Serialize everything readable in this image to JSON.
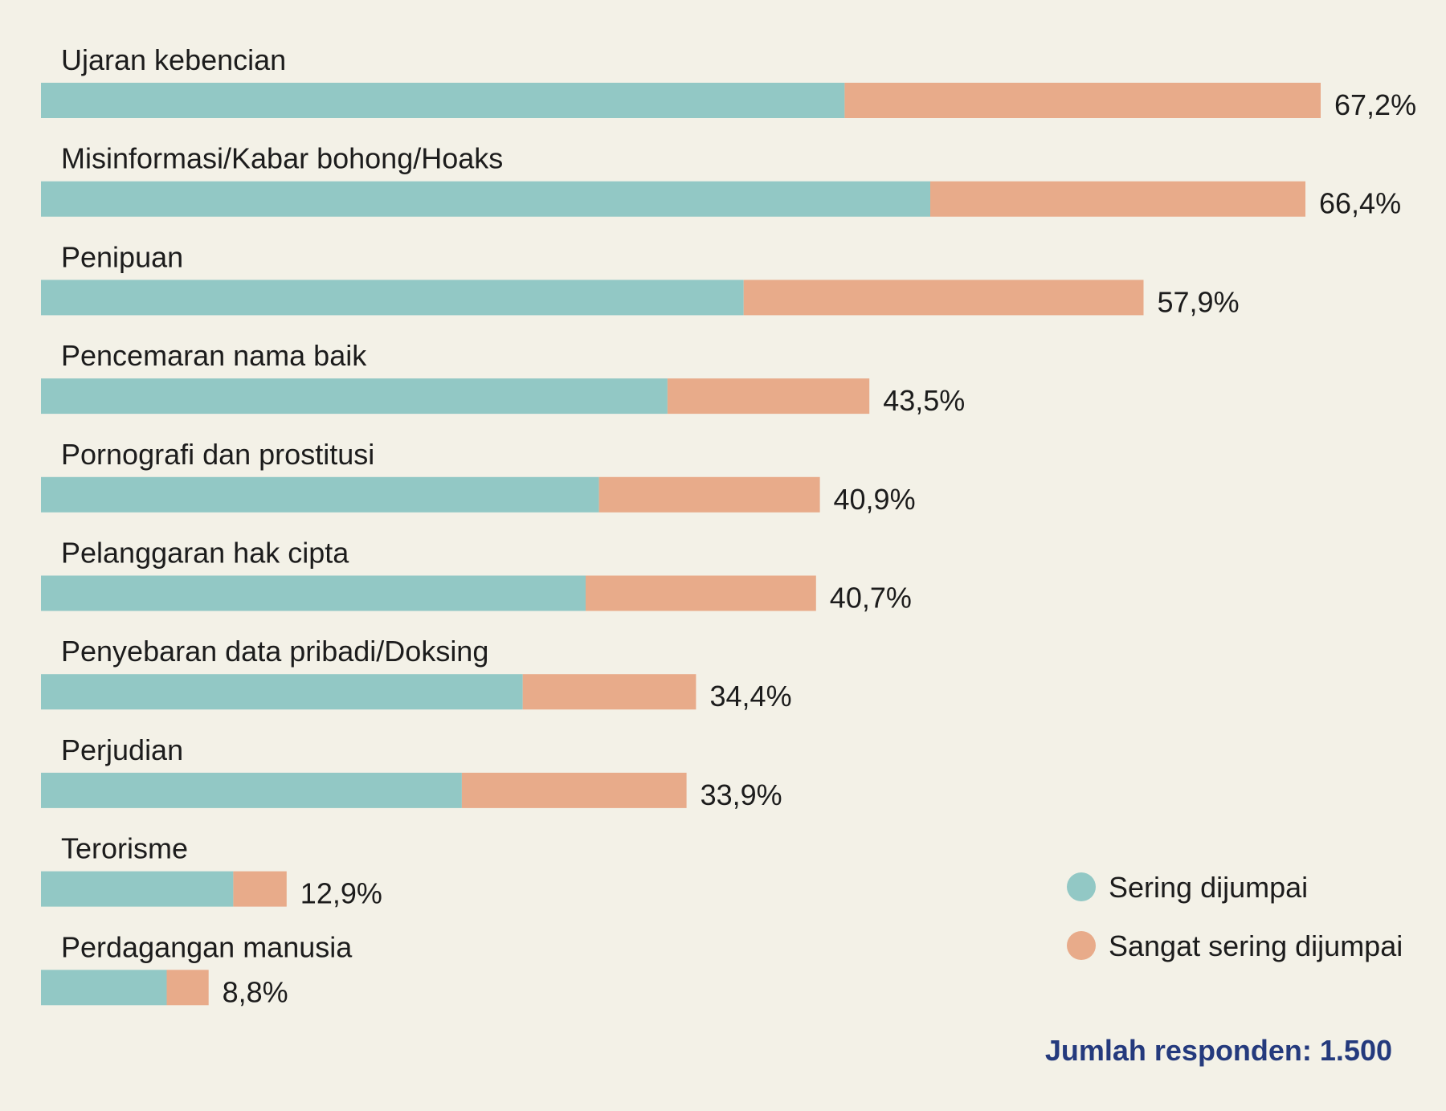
{
  "chart_data": {
    "type": "bar",
    "orientation": "horizontal",
    "stacked": true,
    "categories": [
      "Ujaran kebencian",
      "Misinformasi/Kabar bohong/Hoaks",
      "Penipuan",
      "Pencemaran nama baik",
      "Pornografi dan prostitusi",
      "Pelanggaran hak cipta",
      "Penyebaran data pribadi/Doksing",
      "Perjudian",
      "Terorisme",
      "Perdagangan manusia"
    ],
    "series": [
      {
        "name": "Sering dijumpai",
        "color": "#92c8c5",
        "values": [
          42.2,
          46.7,
          36.9,
          32.9,
          29.3,
          28.6,
          25.3,
          22.1,
          10.1,
          6.6
        ]
      },
      {
        "name": "Sangat sering dijumpai",
        "color": "#e8ab8a",
        "values": [
          25.0,
          19.7,
          21.0,
          10.6,
          11.6,
          12.1,
          9.1,
          11.8,
          2.8,
          2.2
        ]
      }
    ],
    "total_labels": [
      "67,2%",
      "66,4%",
      "57,9%",
      "43,5%",
      "40,9%",
      "40,7%",
      "34,4%",
      "33,9%",
      "12,9%",
      "8,8%"
    ],
    "totals": [
      67.2,
      66.4,
      57.9,
      43.5,
      40.9,
      40.7,
      34.4,
      33.9,
      12.9,
      8.8
    ],
    "xlim": [
      0,
      67.2
    ],
    "legend_position": "bottom-right",
    "grid": false
  },
  "footnote": "Jumlah responden: 1.500",
  "colors": {
    "background": "#f3f1e7",
    "teal": "#92c8c5",
    "salmon": "#e8ab8a",
    "footnote": "#243a7d"
  }
}
